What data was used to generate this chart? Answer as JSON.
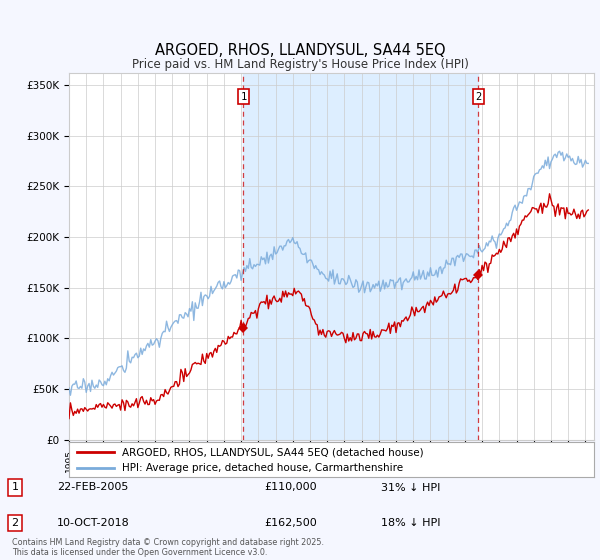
{
  "title": "ARGOED, RHOS, LLANDYSUL, SA44 5EQ",
  "subtitle": "Price paid vs. HM Land Registry's House Price Index (HPI)",
  "ylabel_ticks": [
    "£0",
    "£50K",
    "£100K",
    "£150K",
    "£200K",
    "£250K",
    "£300K",
    "£350K"
  ],
  "ytick_values": [
    0,
    50000,
    100000,
    150000,
    200000,
    250000,
    300000,
    350000
  ],
  "ylim": [
    0,
    362000
  ],
  "xlim_start": 1995.0,
  "xlim_end": 2025.5,
  "sale1_x": 2005.13,
  "sale1_y": 110000,
  "sale2_x": 2018.78,
  "sale2_y": 162500,
  "sale1_date": "22-FEB-2005",
  "sale1_price": "£110,000",
  "sale1_hpi": "31% ↓ HPI",
  "sale2_date": "10-OCT-2018",
  "sale2_price": "£162,500",
  "sale2_hpi": "18% ↓ HPI",
  "legend_entry1": "ARGOED, RHOS, LLANDYSUL, SA44 5EQ (detached house)",
  "legend_entry2": "HPI: Average price, detached house, Carmarthenshire",
  "footer": "Contains HM Land Registry data © Crown copyright and database right 2025.\nThis data is licensed under the Open Government Licence v3.0.",
  "hpi_line_color": "#7aabdb",
  "sold_line_color": "#cc0000",
  "shade_color": "#ddeeff",
  "background_color": "#f5f7ff",
  "plot_bg_color": "#ffffff",
  "grid_color": "#cccccc"
}
